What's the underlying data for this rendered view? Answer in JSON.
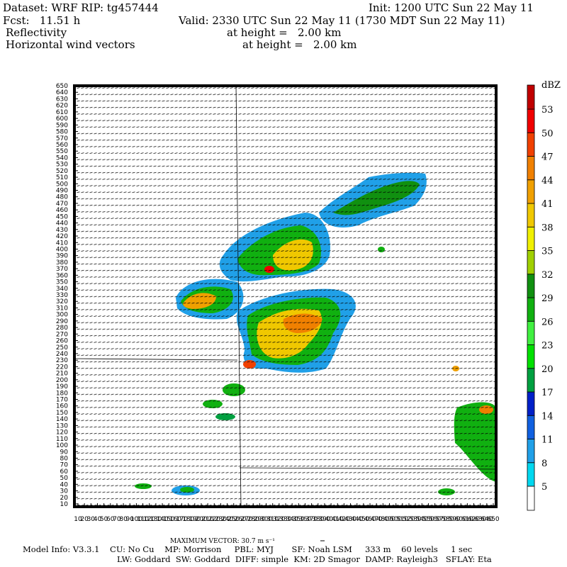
{
  "header": {
    "dataset": "Dataset: WRF  RIP: tg457444",
    "init": "Init: 1200 UTC Sun 22 May 11",
    "fcst": "Fcst:   11.51 h",
    "valid": "Valid: 2330 UTC Sun 22 May 11 (1730 MDT Sun 22 May 11)",
    "field1": "Reflectivity",
    "height1": "at height =   2.00 km",
    "field2": "Horizontal wind vectors",
    "height2": "at height =   2.00 km"
  },
  "plot": {
    "yticks": [
      10,
      20,
      30,
      40,
      50,
      60,
      70,
      80,
      90,
      100,
      110,
      120,
      130,
      140,
      150,
      160,
      170,
      180,
      190,
      200,
      210,
      220,
      230,
      240,
      250,
      260,
      270,
      280,
      290,
      300,
      310,
      320,
      330,
      340,
      350,
      360,
      370,
      380,
      390,
      400,
      410,
      420,
      430,
      440,
      450,
      460,
      470,
      480,
      490,
      500,
      510,
      520,
      530,
      540,
      550,
      560,
      570,
      580,
      590,
      600,
      610,
      620,
      630,
      640,
      650
    ],
    "xticks": [
      10,
      20,
      30,
      40,
      50,
      60,
      70,
      80,
      90,
      100,
      110,
      120,
      130,
      140,
      150,
      160,
      170,
      180,
      190,
      200,
      210,
      220,
      230,
      240,
      250,
      260,
      270,
      280,
      290,
      300,
      310,
      320,
      330,
      340,
      350,
      360,
      370,
      380,
      390,
      400,
      410,
      420,
      430,
      440,
      450,
      460,
      470,
      480,
      490,
      500,
      510,
      520,
      530,
      540,
      550,
      560,
      570,
      580,
      590,
      600,
      610,
      620,
      630,
      640,
      650
    ]
  },
  "colorbar": {
    "unit": "dBZ",
    "levels": [
      5,
      8,
      11,
      14,
      17,
      20,
      23,
      26,
      29,
      32,
      35,
      38,
      41,
      44,
      47,
      50,
      53
    ],
    "colors": [
      "#00d8f0",
      "#20a0e8",
      "#1060e0",
      "#0020c8",
      "#00a040",
      "#00e000",
      "#40f040",
      "#10b010",
      "#109010",
      "#a0d000",
      "#f0f000",
      "#f0c800",
      "#f0a000",
      "#f08000",
      "#f04000",
      "#f00000",
      "#c00000"
    ]
  },
  "footer": {
    "max_vector": "MAXIMUM VECTOR:  30.7 m s⁻¹",
    "model_info": "Model Info: V3.3.1    CU: No Cu    MP: Morrison     PBL: MYJ       SF: Noah LSM     333 m    60 levels     1 sec",
    "model_info2": "LW: Goddard  SW: Goddard  DIFF: simple  KM: 2D Smagor  DAMP: Rayleigh3   SFLAY: Eta"
  }
}
